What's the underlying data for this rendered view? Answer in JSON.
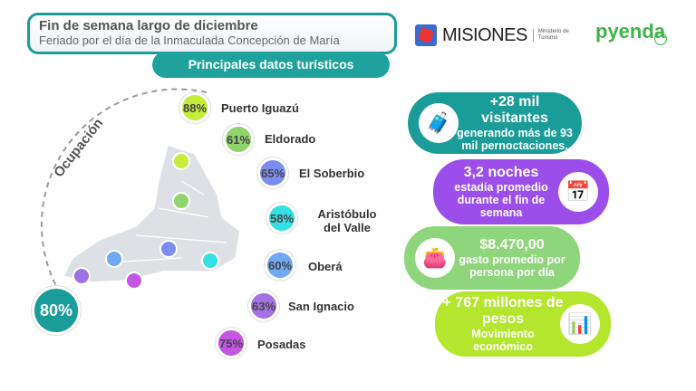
{
  "header": {
    "title": "Fin de semana largo de diciembre",
    "subtitle": "Feriado por el día de la Inmaculada Concepción de María",
    "section": "Principales datos turísticos"
  },
  "logos": {
    "misiones": "MISIONES",
    "ministerio": "Ministerio de Turismo",
    "pyenda": "pyenda"
  },
  "occupancy": {
    "label": "Ocupación",
    "total": "80%",
    "total_color": "#1a9c98",
    "destinations": [
      {
        "name": "Puerto Iguazú",
        "value": "88%",
        "color": "#c6ec3c"
      },
      {
        "name": "Eldorado",
        "value": "61%",
        "color": "#8fd46c"
      },
      {
        "name": "El Soberbio",
        "value": "65%",
        "color": "#7b8df0"
      },
      {
        "name": "Aristóbulo del Valle",
        "value": "58%",
        "color": "#33e0e4"
      },
      {
        "name": "Oberá",
        "value": "60%",
        "color": "#6fa9f2"
      },
      {
        "name": "San Ignacio",
        "value": "63%",
        "color": "#a172e2"
      },
      {
        "name": "Posadas",
        "value": "75%",
        "color": "#c356e2"
      }
    ]
  },
  "stats": [
    {
      "headline": "+28 mil visitantes",
      "text": "generando más de 93 mil pernoctaciones.",
      "icon": "traveler-luggage-icon",
      "color": "#1a9c98"
    },
    {
      "headline": "3,2 noches",
      "text": "estadía promedio durante el fin de semana",
      "icon": "calendar-clock-icon",
      "color": "#9b4ee9"
    },
    {
      "headline": "$8.470,00",
      "text": "gasto promedio por persona por día",
      "icon": "wallet-icon",
      "color": "#8fd57c"
    },
    {
      "headline": "+ 767 millones de pesos",
      "text": "Movimiento económico",
      "icon": "finance-chart-coin-icon",
      "color": "#b3e62c"
    }
  ]
}
